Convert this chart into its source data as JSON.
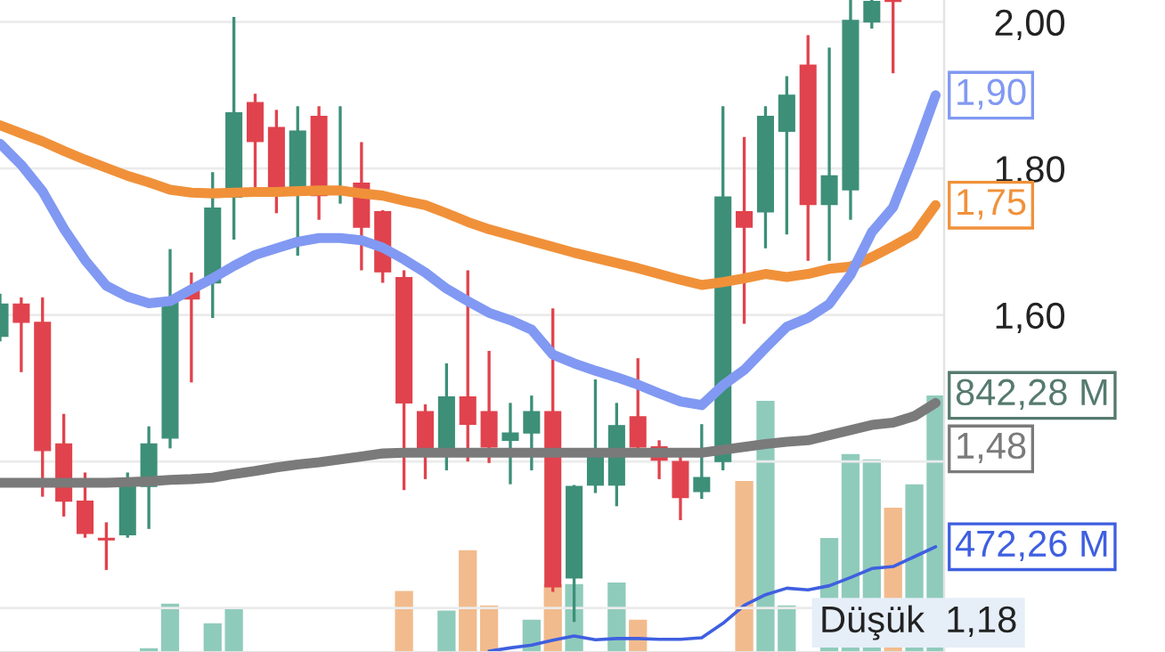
{
  "chart_data": {
    "type": "candlestick",
    "categories": [
      null,
      null,
      null,
      null,
      null,
      null,
      null,
      null,
      null,
      null,
      null,
      null,
      null,
      null,
      null,
      null,
      null,
      null,
      null,
      null,
      null,
      null,
      null,
      null,
      null,
      null,
      null,
      null,
      null,
      null,
      null,
      null,
      null,
      null,
      null,
      null,
      null,
      null,
      null,
      null,
      null,
      null,
      null,
      null,
      null
    ],
    "ohlc": [
      [
        1.571,
        1.627,
        1.566,
        1.615
      ],
      [
        1.615,
        1.622,
        1.524,
        1.59
      ],
      [
        1.59,
        1.622,
        1.354,
        1.415
      ],
      [
        1.424,
        1.463,
        1.327,
        1.346
      ],
      [
        1.346,
        1.383,
        1.298,
        1.302
      ],
      [
        1.295,
        1.315,
        1.254,
        1.293
      ],
      [
        1.3,
        1.383,
        1.298,
        1.376
      ],
      [
        1.366,
        1.446,
        1.31,
        1.424
      ],
      [
        1.432,
        1.688,
        1.42,
        1.622
      ],
      [
        1.634,
        1.656,
        1.51,
        1.622
      ],
      [
        1.644,
        1.793,
        1.598,
        1.746
      ],
      [
        1.761,
        2.005,
        1.705,
        1.876
      ],
      [
        1.89,
        1.9,
        1.773,
        1.837
      ],
      [
        1.856,
        1.878,
        1.741,
        1.763
      ],
      [
        1.771,
        1.883,
        1.683,
        1.851
      ],
      [
        1.871,
        1.883,
        1.732,
        1.763
      ],
      [
        1.768,
        1.883,
        1.754,
        1.773
      ],
      [
        1.78,
        1.834,
        1.663,
        1.72
      ],
      [
        1.741,
        1.741,
        1.646,
        1.659
      ],
      [
        1.651,
        1.659,
        1.363,
        1.48
      ],
      [
        1.468,
        1.476,
        1.378,
        1.407
      ],
      [
        1.412,
        1.532,
        1.39,
        1.488
      ],
      [
        1.488,
        1.659,
        1.402,
        1.451
      ],
      [
        1.468,
        1.549,
        1.4,
        1.42
      ],
      [
        1.429,
        1.478,
        1.371,
        1.439
      ],
      [
        1.439,
        1.488,
        1.39,
        1.468
      ],
      [
        1.468,
        1.607,
        1.224,
        1.229
      ],
      [
        1.241,
        1.366,
        1.183,
        1.366
      ],
      [
        1.368,
        1.51,
        1.359,
        1.407
      ],
      [
        1.368,
        1.478,
        1.341,
        1.449
      ],
      [
        1.461,
        1.539,
        1.415,
        1.42
      ],
      [
        1.42,
        1.427,
        1.378,
        1.402
      ],
      [
        1.4,
        1.407,
        1.322,
        1.351
      ],
      [
        1.359,
        1.449,
        1.351,
        1.378
      ],
      [
        1.4,
        1.883,
        1.39,
        1.761
      ],
      [
        1.741,
        1.841,
        1.59,
        1.72
      ],
      [
        1.741,
        1.883,
        1.693,
        1.871
      ],
      [
        1.851,
        1.924,
        1.712,
        1.9
      ],
      [
        1.941,
        1.98,
        1.676,
        1.751
      ],
      [
        1.751,
        1.963,
        1.676,
        1.79
      ],
      [
        1.771,
        2.029,
        1.732,
        2.002
      ],
      [
        2.0,
        2.029,
        1.993,
        2.028
      ],
      [
        2.029,
        2.029,
        1.932,
        2.028
      ],
      null,
      null
    ],
    "colors": [
      "#3d8f78",
      "#e0434d",
      "#e0434d",
      "#e0434d",
      "#e0434d",
      "#e0434d",
      "#3d8f78",
      "#3d8f78",
      "#3d8f78",
      "#e0434d",
      "#3d8f78",
      "#3d8f78",
      "#e0434d",
      "#e0434d",
      "#3d8f78",
      "#e0434d",
      "#3d8f78",
      "#e0434d",
      "#e0434d",
      "#e0434d",
      "#e0434d",
      "#3d8f78",
      "#e0434d",
      "#e0434d",
      "#3d8f78",
      "#3d8f78",
      "#e0434d",
      "#3d8f78",
      "#3d8f78",
      "#3d8f78",
      "#e0434d",
      "#e0434d",
      "#e0434d",
      "#3d8f78",
      "#3d8f78",
      "#e0434d",
      "#3d8f78",
      "#3d8f78",
      "#e0434d",
      "#3d8f78",
      "#3d8f78",
      "#3d8f78",
      "#e0434d",
      "#3d8f78",
      "#3d8f78"
    ],
    "series": [
      {
        "type": "bar",
        "axis": "y2",
        "values": [
          null,
          null,
          null,
          null,
          null,
          null,
          null,
          224,
          333,
          null,
          285,
          320,
          null,
          null,
          null,
          null,
          null,
          null,
          null,
          364,
          null,
          316,
          464,
          329,
          null,
          294,
          381,
          381,
          null,
          385,
          294,
          null,
          null,
          null,
          null,
          633,
          829,
          329,
          null,
          494,
          699,
          686,
          568,
          625,
          842.28
        ],
        "colors": [
          "#8fcbbb",
          "#8fcbbb",
          "#8fcbbb",
          "#8fcbbb",
          "#8fcbbb",
          "#8fcbbb",
          "#8fcbbb",
          "#8fcbbb",
          "#8fcbbb",
          "#8fcbbb",
          "#8fcbbb",
          "#8fcbbb",
          "#8fcbbb",
          "#8fcbbb",
          "#8fcbbb",
          "#8fcbbb",
          "#8fcbbb",
          "#8fcbbb",
          "#8fcbbb",
          "#f2bb8d",
          "#8fcbbb",
          "#8fcbbb",
          "#f2bb8d",
          "#f2bb8d",
          "#8fcbbb",
          "#8fcbbb",
          "#f2bb8d",
          "#8fcbbb",
          "#8fcbbb",
          "#8fcbbb",
          "#f2bb8d",
          "#8fcbbb",
          "#8fcbbb",
          "#8fcbbb",
          "#8fcbbb",
          "#f2bb8d",
          "#8fcbbb",
          "#8fcbbb",
          "#f2bb8d",
          "#8fcbbb",
          "#8fcbbb",
          "#8fcbbb",
          "#f2bb8d",
          "#8fcbbb",
          "#8fcbbb"
        ]
      },
      {
        "type": "line",
        "axis": "y2",
        "color": "#3f5fe0",
        "values": [
          null,
          null,
          null,
          null,
          null,
          null,
          null,
          null,
          null,
          null,
          null,
          null,
          null,
          null,
          null,
          null,
          null,
          null,
          null,
          null,
          null,
          null,
          null,
          217,
          225,
          232,
          244,
          254,
          245,
          248,
          248,
          246,
          246,
          250,
          285,
          329,
          355,
          371,
          367,
          377,
          397,
          419,
          424,
          448,
          472.26
        ]
      },
      {
        "type": "line",
        "color": "#7a7a7a",
        "values": [
          1.371,
          1.371,
          1.371,
          1.371,
          1.371,
          1.371,
          1.372,
          1.373,
          1.375,
          1.376,
          1.378,
          1.383,
          1.387,
          1.392,
          1.396,
          1.399,
          1.403,
          1.407,
          1.411,
          1.412,
          1.412,
          1.412,
          1.412,
          1.412,
          1.412,
          1.412,
          1.412,
          1.412,
          1.412,
          1.412,
          1.412,
          1.412,
          1.412,
          1.412,
          1.416,
          1.42,
          1.424,
          1.427,
          1.429,
          1.436,
          1.443,
          1.45,
          1.453,
          1.462,
          1.48
        ],
        "value_labels": [
          null,
          null,
          null,
          null,
          null,
          null,
          null,
          null,
          null,
          null,
          null,
          null,
          null,
          null,
          null,
          null,
          null,
          null,
          null,
          null,
          null,
          null,
          null,
          null,
          null,
          null,
          null,
          null,
          null,
          null,
          null,
          null,
          null,
          null,
          null,
          null,
          null,
          null,
          null,
          null,
          null,
          null,
          null,
          null,
          "1,48"
        ]
      },
      {
        "type": "line",
        "color": "#f0913a",
        "values": [
          1.859,
          1.848,
          1.837,
          1.824,
          1.812,
          1.801,
          1.79,
          1.781,
          1.771,
          1.767,
          1.766,
          1.767,
          1.768,
          1.768,
          1.769,
          1.77,
          1.77,
          1.766,
          1.763,
          1.756,
          1.75,
          1.739,
          1.727,
          1.717,
          1.709,
          1.701,
          1.693,
          1.685,
          1.678,
          1.671,
          1.664,
          1.656,
          1.648,
          1.641,
          1.645,
          1.65,
          1.656,
          1.652,
          1.656,
          1.663,
          1.666,
          1.679,
          1.694,
          1.71,
          1.75
        ],
        "value_labels": [
          null,
          null,
          null,
          null,
          null,
          null,
          null,
          null,
          null,
          null,
          null,
          null,
          null,
          null,
          null,
          null,
          null,
          null,
          null,
          null,
          null,
          null,
          null,
          null,
          null,
          null,
          null,
          null,
          null,
          null,
          null,
          null,
          null,
          null,
          null,
          null,
          null,
          null,
          null,
          null,
          null,
          null,
          null,
          null,
          "1,75"
        ]
      },
      {
        "type": "line",
        "color": "#8199f2",
        "values": [
          1.834,
          1.805,
          1.769,
          1.718,
          1.675,
          1.64,
          1.625,
          1.616,
          1.619,
          1.635,
          1.65,
          1.667,
          1.682,
          1.691,
          1.7,
          1.705,
          1.705,
          1.702,
          1.692,
          1.676,
          1.658,
          1.636,
          1.619,
          1.603,
          1.593,
          1.58,
          1.546,
          1.534,
          1.524,
          1.515,
          1.505,
          1.493,
          1.482,
          1.477,
          1.504,
          1.525,
          1.555,
          1.584,
          1.596,
          1.615,
          1.655,
          1.713,
          1.747,
          1.82,
          1.9
        ],
        "value_labels": [
          null,
          null,
          null,
          null,
          null,
          null,
          null,
          null,
          null,
          null,
          null,
          null,
          null,
          null,
          null,
          null,
          null,
          null,
          null,
          null,
          null,
          null,
          null,
          null,
          null,
          null,
          null,
          null,
          null,
          null,
          null,
          null,
          null,
          null,
          null,
          null,
          null,
          null,
          null,
          null,
          null,
          null,
          null,
          null,
          "1,90"
        ]
      }
    ],
    "ylim": [
      1.14,
      2.03
    ],
    "yticks": [
      {
        "value": 1.2,
        "label": null
      },
      {
        "value": 1.4,
        "label": null
      },
      {
        "value": 1.6,
        "label": "1,60"
      },
      {
        "value": 1.8,
        "label": "1,80"
      },
      {
        "value": 2.0,
        "label": "2,00"
      }
    ],
    "y2lim": [
      215,
      1809
    ],
    "y2ticks": [
      {
        "value": 472.26,
        "label": "472,26 M"
      },
      {
        "value": 842.28,
        "label": "842,28 M"
      }
    ],
    "tick_labels": "y",
    "grid": "y",
    "annotations": [
      {
        "text": "Düşük  1,18",
        "y": 1.18
      }
    ]
  }
}
